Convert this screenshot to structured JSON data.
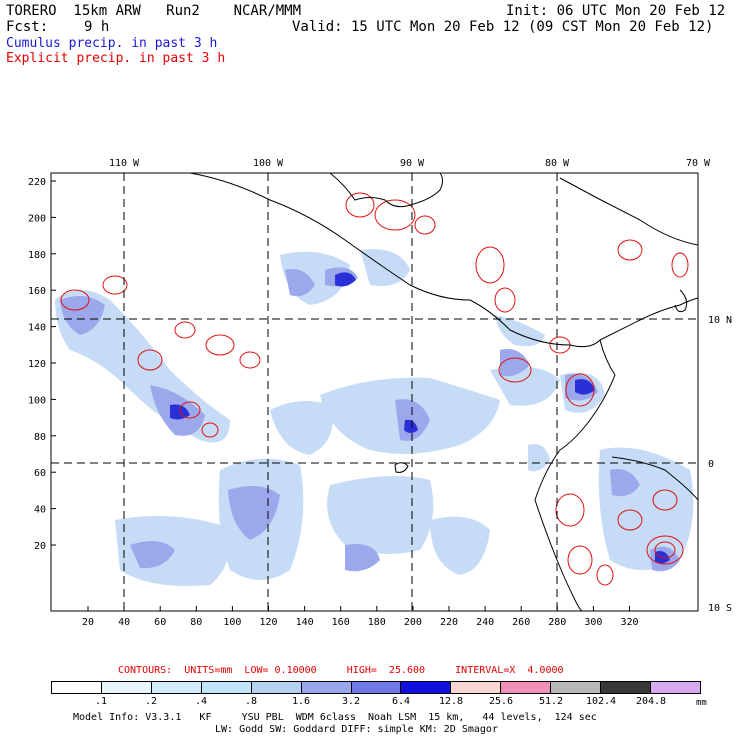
{
  "header": {
    "model": "TORERO  15km ARW   Run2    NCAR/MMM",
    "init": "Init: 06 UTC Mon 20 Feb 12",
    "fcst_label": "Fcst:",
    "fcst_value": "9 h",
    "valid": "Valid: 15 UTC Mon 20 Feb 12 (09 CST Mon 20 Feb 12)",
    "cumulus_label": "Cumulus precip. in past 3 h",
    "explicit_label": "Explicit precip. in past 3 h"
  },
  "colors": {
    "cumulus_text": "#1a1ad0",
    "explicit_text": "#e00000",
    "contour_line": "#e01010",
    "coast": "#000000"
  },
  "map": {
    "lon_labels": [
      "110 W",
      "100 W",
      "90 W",
      "80 W",
      "70 W"
    ],
    "lat_labels": [
      "10 N",
      "0",
      "10 S"
    ],
    "y_ticks": [
      "220",
      "200",
      "180",
      "160",
      "140",
      "120",
      "100",
      "80",
      "60",
      "40",
      "20"
    ],
    "x_ticks": [
      "20",
      "40",
      "60",
      "80",
      "100",
      "120",
      "140",
      "160",
      "180",
      "200",
      "220",
      "240",
      "260",
      "280",
      "300",
      "320"
    ]
  },
  "contour_info": "CONTOURS:  UNITS=mm  LOW= 0.10000     HIGH=  25.600     INTERVAL=X  4.0000",
  "colorbar": {
    "labels": [
      ".1",
      ".2",
      ".4",
      ".8",
      "1.6",
      "3.2",
      "6.4",
      "12.8",
      "25.6",
      "51.2",
      "102.4",
      "204.8"
    ],
    "unit": "mm",
    "colors": [
      "#ffffff",
      "#eaf6ff",
      "#d2ecfc",
      "#c2e4f8",
      "#b6d0f2",
      "#9aa6ec",
      "#6f78e4",
      "#1010e0",
      "#f8d6d2",
      "#f090b8",
      "#b8b8b8",
      "#383838",
      "#d8a8f0"
    ]
  },
  "footer": {
    "line1": "Model Info: V3.3.1   KF     YSU PBL  WDM 6class  Noah LSM  15 km,   44 levels,  124 sec",
    "line2": "LW: Godd SW: Goddard DIFF: simple KM: 2D Smagor"
  }
}
